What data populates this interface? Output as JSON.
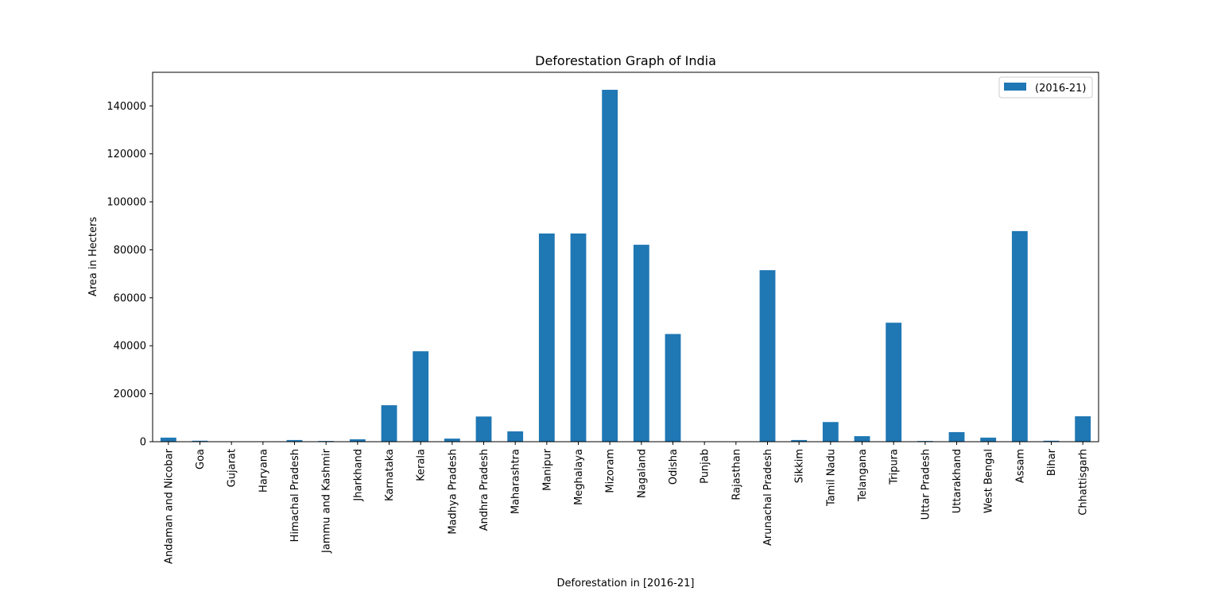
{
  "chart_data": {
    "type": "bar",
    "title": "Deforestation Graph of India",
    "xlabel": "Deforestation in [2016-21]",
    "ylabel": "Area in Hecters",
    "ylim": [
      0,
      154000
    ],
    "yticks": [
      0,
      20000,
      40000,
      60000,
      80000,
      100000,
      120000,
      140000
    ],
    "grid": false,
    "legend_position": "top-right",
    "categories": [
      "Andaman and Nicobar",
      "Goa",
      "Gujarat",
      "Haryana",
      "Himachal Pradesh",
      "Jammu and Kashmir",
      "Jharkhand",
      "Karnataka",
      "Kerala",
      "Madhya Pradesh",
      "Andhra Pradesh",
      "Maharashtra",
      "Manipur",
      "Meghalaya",
      "Mizoram",
      "Nagaland",
      "Odisha",
      "Punjab",
      "Rajasthan",
      "Arunachal Pradesh",
      "Sikkim",
      "Tamil Nadu",
      "Telangana",
      "Tripura",
      "Uttar Pradesh",
      "Uttarakhand",
      "West Bengal",
      "Assam",
      "Bihar",
      "Chhattisgarh"
    ],
    "series": [
      {
        "name": "(2016-21)",
        "color": "#1f77b4",
        "values": [
          1700,
          400,
          0,
          0,
          700,
          300,
          1000,
          15200,
          37700,
          1300,
          10500,
          4300,
          86800,
          86800,
          146700,
          82100,
          44900,
          0,
          0,
          71500,
          700,
          8200,
          2300,
          49600,
          300,
          4000,
          1700,
          87800,
          400,
          10600
        ]
      }
    ]
  }
}
